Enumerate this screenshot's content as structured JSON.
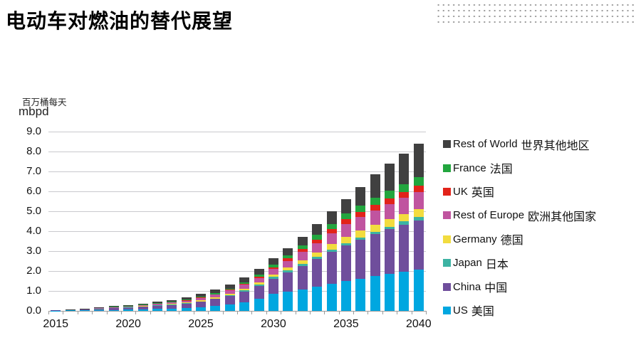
{
  "page": {
    "title": "电动车对燃油的替代展望"
  },
  "decoration": {
    "dot_pattern_color": "#9a9a9a"
  },
  "axes": {
    "unit_label_zh": "百万桶每天",
    "unit_label_en": "mbpd",
    "ytick_labels": [
      "9.0",
      "8.0",
      "7.0",
      "6.0",
      "5.0",
      "4.0",
      "3.0",
      "2.0",
      "1.0",
      "0.0"
    ],
    "xtick_labels": [
      "2015",
      "2020",
      "2025",
      "2030",
      "2035",
      "2040"
    ]
  },
  "chart_data": {
    "type": "bar",
    "stacked": true,
    "title": "电动车对燃油的替代展望",
    "ylabel": "mbpd (百万桶每天)",
    "xlabel": "",
    "ylim": [
      0,
      9
    ],
    "ytick_step": 1.0,
    "grid": true,
    "legend_position": "right",
    "categories": [
      2015,
      2016,
      2017,
      2018,
      2019,
      2020,
      2021,
      2022,
      2023,
      2024,
      2025,
      2026,
      2027,
      2028,
      2029,
      2030,
      2031,
      2032,
      2033,
      2034,
      2035,
      2036,
      2037,
      2038,
      2039,
      2040
    ],
    "x_axis_labeled_ticks": [
      2015,
      2020,
      2025,
      2030,
      2035,
      2040
    ],
    "stack_note": "series listed in legend order = top of stack first; US is bottom of stack",
    "series": [
      {
        "name": "Rest of World",
        "name_zh": "世界其他地区",
        "color": "#404040",
        "values": [
          0.01,
          0.02,
          0.03,
          0.03,
          0.04,
          0.05,
          0.06,
          0.07,
          0.08,
          0.11,
          0.15,
          0.18,
          0.22,
          0.26,
          0.3,
          0.32,
          0.37,
          0.42,
          0.54,
          0.64,
          0.72,
          0.91,
          1.18,
          1.37,
          1.51,
          1.7
        ]
      },
      {
        "name": "France",
        "name_zh": "法国",
        "color": "#22A63E",
        "values": [
          0.0,
          0.0,
          0.0,
          0.01,
          0.01,
          0.01,
          0.01,
          0.02,
          0.02,
          0.03,
          0.03,
          0.04,
          0.05,
          0.07,
          0.09,
          0.12,
          0.15,
          0.18,
          0.22,
          0.25,
          0.29,
          0.32,
          0.34,
          0.37,
          0.39,
          0.42
        ]
      },
      {
        "name": "UK",
        "name_zh": "英国",
        "color": "#E2231A",
        "values": [
          0.0,
          0.0,
          0.0,
          0.0,
          0.01,
          0.01,
          0.01,
          0.01,
          0.01,
          0.02,
          0.03,
          0.03,
          0.04,
          0.05,
          0.07,
          0.09,
          0.12,
          0.15,
          0.18,
          0.21,
          0.24,
          0.26,
          0.28,
          0.3,
          0.31,
          0.33
        ]
      },
      {
        "name": "Rest of Europe",
        "name_zh": "欧洲其他国家",
        "color": "#C0549F",
        "values": [
          0.0,
          0.01,
          0.01,
          0.02,
          0.03,
          0.04,
          0.05,
          0.06,
          0.07,
          0.09,
          0.12,
          0.14,
          0.17,
          0.2,
          0.23,
          0.27,
          0.33,
          0.4,
          0.47,
          0.55,
          0.63,
          0.68,
          0.72,
          0.76,
          0.8,
          0.84
        ]
      },
      {
        "name": "Germany",
        "name_zh": "德国",
        "color": "#F2DC3F",
        "values": [
          0.0,
          0.0,
          0.0,
          0.01,
          0.01,
          0.01,
          0.02,
          0.02,
          0.03,
          0.03,
          0.04,
          0.05,
          0.06,
          0.08,
          0.1,
          0.12,
          0.16,
          0.2,
          0.24,
          0.29,
          0.33,
          0.34,
          0.36,
          0.37,
          0.38,
          0.39
        ]
      },
      {
        "name": "Japan",
        "name_zh": "日本",
        "color": "#3CB3A3",
        "values": [
          0.0,
          0.0,
          0.0,
          0.01,
          0.01,
          0.01,
          0.01,
          0.01,
          0.02,
          0.02,
          0.02,
          0.03,
          0.04,
          0.05,
          0.07,
          0.09,
          0.09,
          0.1,
          0.1,
          0.11,
          0.11,
          0.12,
          0.13,
          0.14,
          0.16,
          0.18
        ]
      },
      {
        "name": "China",
        "name_zh": "中国",
        "color": "#6F4E9C",
        "values": [
          0.01,
          0.02,
          0.03,
          0.05,
          0.08,
          0.1,
          0.13,
          0.16,
          0.18,
          0.22,
          0.27,
          0.34,
          0.43,
          0.54,
          0.66,
          0.78,
          0.97,
          1.17,
          1.38,
          1.59,
          1.79,
          1.95,
          2.1,
          2.24,
          2.37,
          2.49
        ]
      },
      {
        "name": "US",
        "name_zh": "美国",
        "color": "#00A7E0",
        "values": [
          0.01,
          0.02,
          0.03,
          0.04,
          0.05,
          0.06,
          0.08,
          0.1,
          0.12,
          0.15,
          0.19,
          0.25,
          0.33,
          0.44,
          0.6,
          0.84,
          0.96,
          1.08,
          1.22,
          1.36,
          1.5,
          1.62,
          1.74,
          1.85,
          1.96,
          2.06
        ]
      }
    ]
  }
}
